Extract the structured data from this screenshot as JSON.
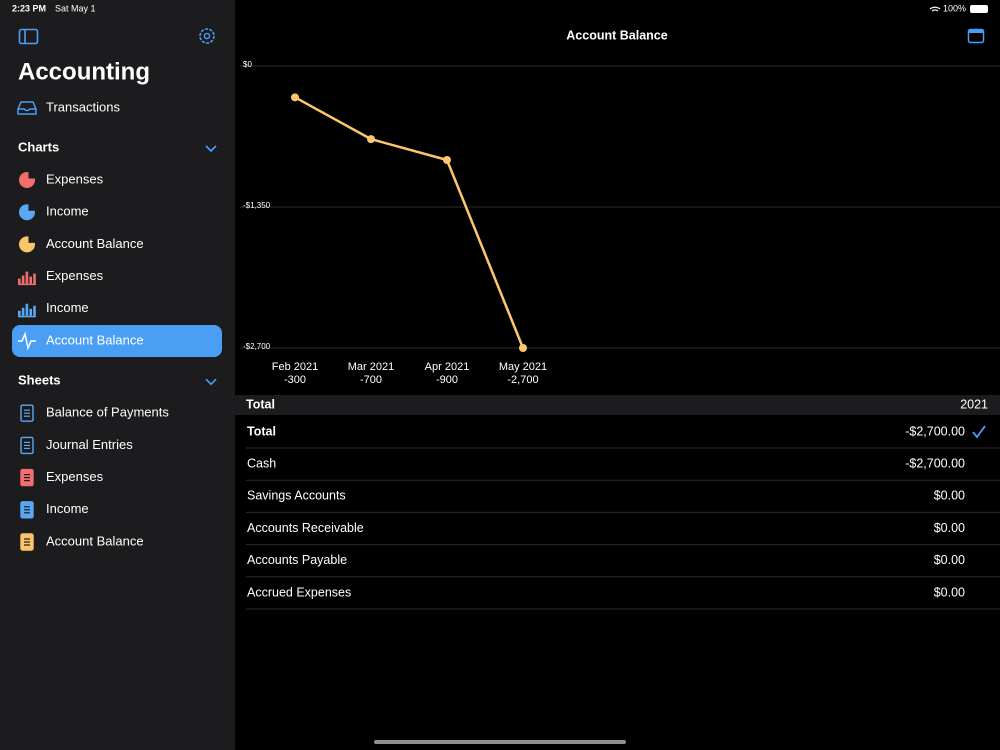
{
  "status_bar": {
    "time": "2:23 PM",
    "date": "Sat May 1",
    "battery": "100%"
  },
  "sidebar": {
    "title": "Accounting",
    "top_items": [
      {
        "label": "Transactions",
        "icon": "tray",
        "color": "#4a9ff5"
      }
    ],
    "sections": [
      {
        "title": "Charts",
        "items": [
          {
            "label": "Expenses",
            "icon": "pie",
            "color": "#f26d6d"
          },
          {
            "label": "Income",
            "icon": "pie",
            "color": "#5aa8f5"
          },
          {
            "label": "Account Balance",
            "icon": "pie",
            "color": "#f8c56a"
          },
          {
            "label": "Expenses",
            "icon": "bars",
            "color": "#f26d6d"
          },
          {
            "label": "Income",
            "icon": "bars",
            "color": "#5aa8f5"
          },
          {
            "label": "Account Balance",
            "icon": "pulse",
            "color": "#ffffff",
            "selected": true
          }
        ]
      },
      {
        "title": "Sheets",
        "items": [
          {
            "label": "Balance of Payments",
            "icon": "doc-outline",
            "color": "#5aa8f5"
          },
          {
            "label": "Journal Entries",
            "icon": "doc-outline",
            "color": "#5aa8f5"
          },
          {
            "label": "Expenses",
            "icon": "doc",
            "color": "#f26d6d"
          },
          {
            "label": "Income",
            "icon": "doc",
            "color": "#5aa8f5"
          },
          {
            "label": "Account Balance",
            "icon": "doc",
            "color": "#f8c56a"
          }
        ]
      }
    ]
  },
  "chart_data": {
    "type": "line",
    "title": "Account Balance",
    "categories": [
      "Feb 2021",
      "Mar 2021",
      "Apr 2021",
      "May 2021"
    ],
    "values": [
      -300,
      -700,
      -900,
      -2700
    ],
    "value_labels": [
      "-300",
      "-700",
      "-900",
      "-2,700"
    ],
    "color": "#fdc66b",
    "ylim": [
      -2700,
      0
    ],
    "yticks": [
      {
        "value": 0,
        "label": "$0"
      },
      {
        "value": -1350,
        "label": "-$1,350"
      },
      {
        "value": -2700,
        "label": "-$2,700"
      }
    ],
    "grid": true
  },
  "table": {
    "header": [
      "Total",
      "2021"
    ],
    "rows": [
      {
        "label": "Total",
        "value": "-$2,700.00",
        "color": "#ff453a",
        "bold": true,
        "checked": true
      },
      {
        "label": "Cash",
        "value": "-$2,700.00",
        "color": "#ff453a"
      },
      {
        "label": "Savings Accounts",
        "value": "$0.00",
        "color": "#636366"
      },
      {
        "label": "Accounts Receivable",
        "value": "$0.00",
        "color": "#636366"
      },
      {
        "label": "Accounts Payable",
        "value": "$0.00",
        "color": "#636366"
      },
      {
        "label": "Accrued Expenses",
        "value": "$0.00",
        "color": "#636366"
      }
    ]
  }
}
